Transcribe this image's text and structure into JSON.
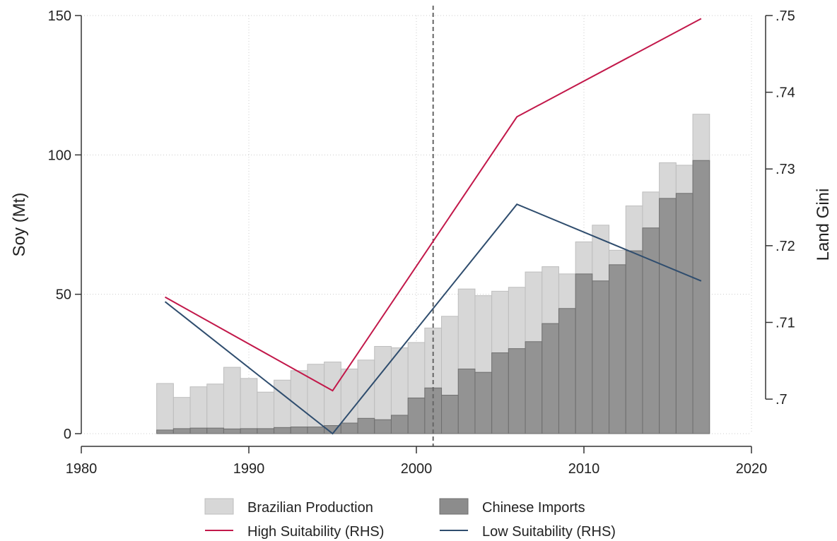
{
  "chart_data": {
    "type": "bar",
    "title": "",
    "xlabel": "",
    "ylabel": "Soy (Mt)",
    "y2label": "Land Gini",
    "xlim": [
      1980,
      2020
    ],
    "ylim": [
      0,
      150
    ],
    "y2lim": [
      0.6955,
      0.75
    ],
    "x_ticks": [
      "1980",
      "1990",
      "2000",
      "2010",
      "2020"
    ],
    "y_ticks": [
      "0",
      "50",
      "100",
      "150"
    ],
    "y2_ticks": [
      ".7",
      ".71",
      ".72",
      ".73",
      ".74",
      ".75"
    ],
    "grid": true,
    "vertical_reference_line": 2001,
    "years": [
      1985,
      1986,
      1987,
      1988,
      1989,
      1990,
      1991,
      1992,
      1993,
      1994,
      1995,
      1996,
      1997,
      1998,
      1999,
      2000,
      2001,
      2002,
      2003,
      2004,
      2005,
      2006,
      2007,
      2008,
      2009,
      2010,
      2011,
      2012,
      2013,
      2014,
      2015,
      2016,
      2017
    ],
    "series": [
      {
        "name": "Brazilian Production",
        "kind": "bar",
        "axis": "left",
        "color": "#d7d7d7",
        "values": [
          18,
          13,
          16.8,
          17.8,
          23.8,
          19.8,
          14.9,
          19.2,
          22.6,
          24.9,
          25.7,
          23.2,
          26.4,
          31.3,
          30.8,
          32.7,
          37.9,
          42.1,
          51.9,
          49.5,
          51.1,
          52.5,
          58,
          59.9,
          57.3,
          68.8,
          74.8,
          65.8,
          81.7,
          86.7,
          97.2,
          96.3,
          114.6
        ]
      },
      {
        "name": "Chinese Imports",
        "kind": "bar",
        "axis": "left",
        "color": "#8c8c8c",
        "values": [
          1.3,
          1.8,
          2,
          2,
          1.7,
          1.8,
          1.8,
          2.2,
          2.4,
          2.4,
          2.9,
          3.8,
          5.5,
          5,
          6.6,
          12.8,
          16.4,
          13.8,
          23.2,
          22,
          29,
          30.5,
          33,
          39.5,
          44.9,
          57.3,
          54.8,
          60.6,
          65.6,
          73.8,
          84.4,
          86.2,
          98
        ]
      },
      {
        "name": "High Suitability (RHS)",
        "kind": "line",
        "axis": "right",
        "color": "#c2184a",
        "x": [
          1985,
          1995,
          2006,
          2017
        ],
        "values": [
          0.7133,
          0.7011,
          0.7368,
          0.7496
        ]
      },
      {
        "name": "Low Suitability (RHS)",
        "kind": "line",
        "axis": "right",
        "color": "#2f4d6e",
        "x": [
          1985,
          1995,
          2006,
          2017
        ],
        "values": [
          0.7127,
          0.6955,
          0.7254,
          0.7154
        ]
      }
    ],
    "legend": {
      "position": "bottom",
      "items": [
        "Brazilian Production",
        "Chinese Imports",
        "High Suitability (RHS)",
        "Low Suitability (RHS)"
      ]
    }
  }
}
